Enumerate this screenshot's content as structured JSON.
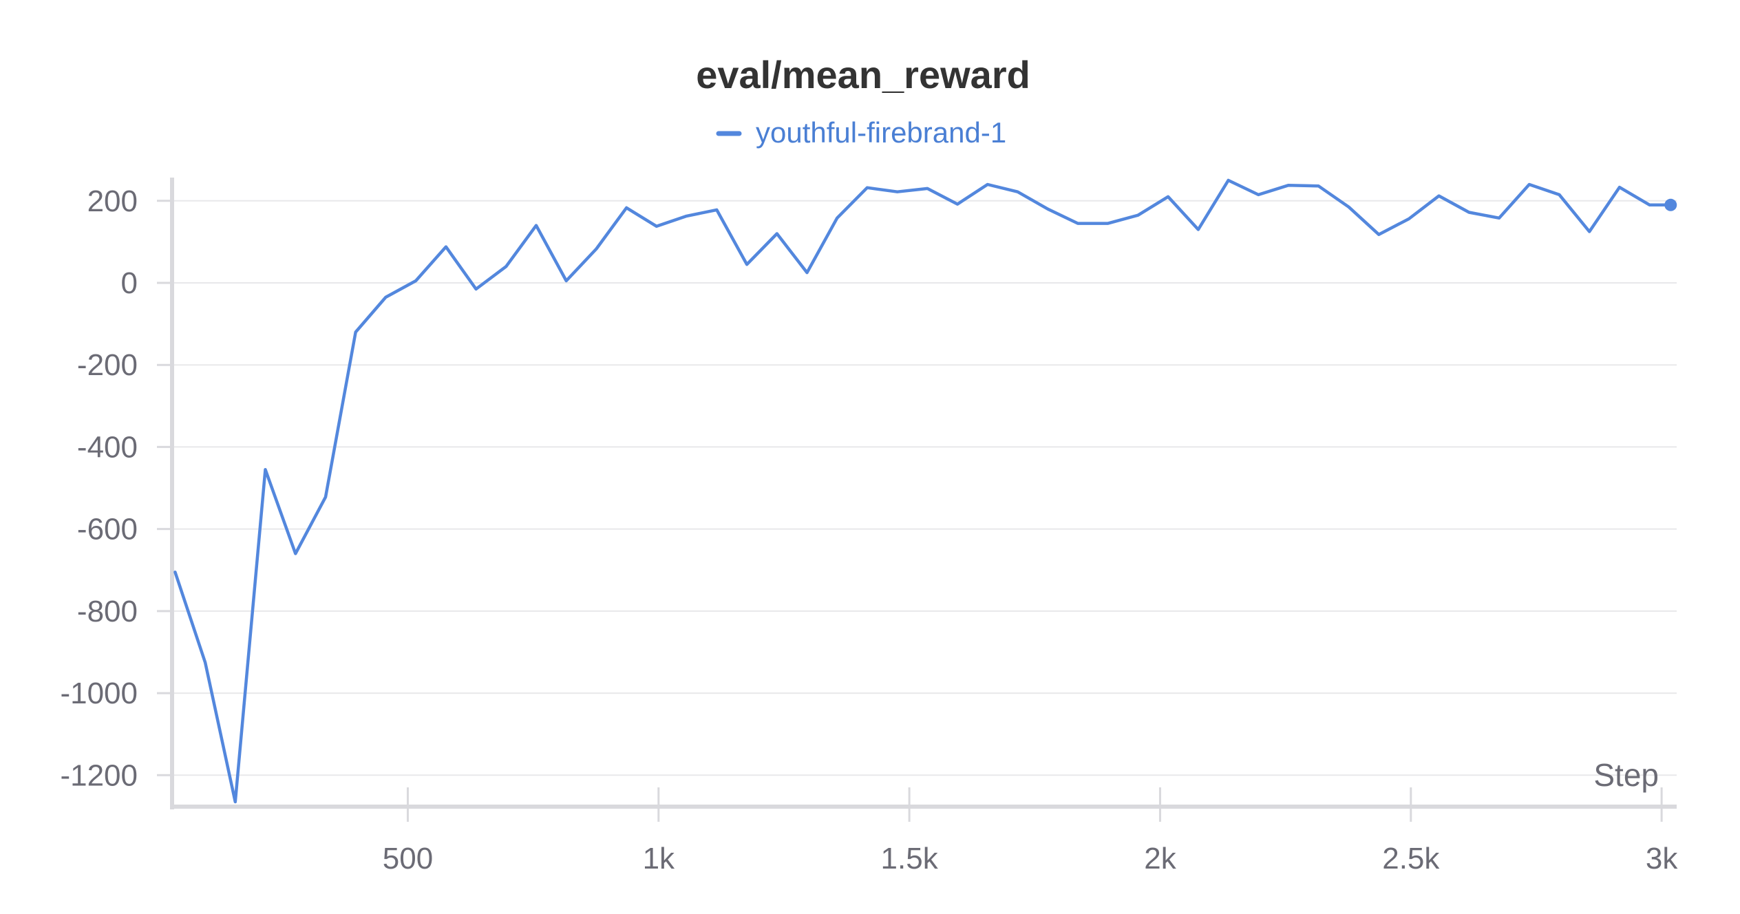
{
  "chart_data": {
    "type": "line",
    "title": "eval/mean_reward",
    "xlabel": "Step",
    "ylabel": "",
    "xlim": [
      30,
      3030
    ],
    "ylim": [
      -1270,
      250
    ],
    "x_ticks": [
      500,
      1000,
      1500,
      2000,
      2500,
      3000
    ],
    "x_tick_labels": [
      "500",
      "1k",
      "1.5k",
      "2k",
      "2.5k",
      "3k"
    ],
    "y_ticks": [
      200,
      0,
      -200,
      -400,
      -600,
      -800,
      -1000,
      -1200
    ],
    "y_tick_labels": [
      "200",
      "0",
      "-200",
      "-400",
      "-600",
      "-800",
      "-1000",
      "-1200"
    ],
    "grid": true,
    "legend_position": "top-center",
    "series": [
      {
        "name": "youthful-firebrand-1",
        "color": "#5387DD",
        "x": [
          36,
          96,
          156,
          216,
          276,
          336,
          396,
          456,
          516,
          576,
          636,
          696,
          756,
          816,
          876,
          936,
          996,
          1056,
          1116,
          1176,
          1236,
          1296,
          1356,
          1416,
          1476,
          1536,
          1596,
          1656,
          1716,
          1776,
          1836,
          1896,
          1956,
          2016,
          2076,
          2136,
          2196,
          2256,
          2316,
          2376,
          2436,
          2496,
          2556,
          2616,
          2676,
          2736,
          2796,
          2856,
          2916,
          2976,
          3018
        ],
        "y": [
          -705,
          -925,
          -1265,
          -455,
          -660,
          -522,
          -120,
          -35,
          5,
          88,
          -15,
          40,
          140,
          5,
          83,
          183,
          138,
          163,
          178,
          45,
          120,
          25,
          158,
          232,
          222,
          230,
          192,
          240,
          222,
          180,
          145,
          145,
          165,
          210,
          130,
          250,
          215,
          238,
          236,
          185,
          118,
          156,
          212,
          172,
          158,
          240,
          215,
          125,
          233,
          190,
          190
        ]
      }
    ]
  }
}
